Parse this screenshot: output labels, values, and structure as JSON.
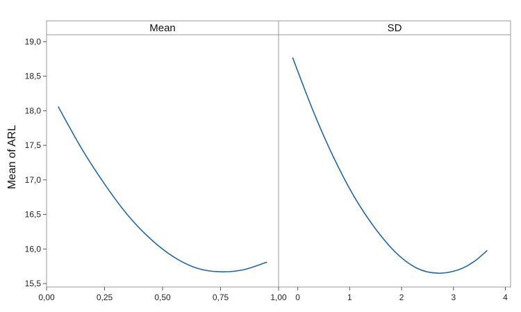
{
  "chart_data": {
    "type": "line",
    "ylabel": "Mean of ARL",
    "ylim": [
      15.45,
      19.1
    ],
    "yticks": [
      15.5,
      16.0,
      16.5,
      17.0,
      17.5,
      18.0,
      18.5,
      19.0
    ],
    "ytick_labels": [
      "15,5",
      "16,0",
      "16,5",
      "17,0",
      "17,5",
      "18,0",
      "18,5",
      "19,0"
    ],
    "line_color": "#2166AC",
    "panels": [
      {
        "title": "Mean",
        "xlim": [
          0.0,
          1.0
        ],
        "xticks": [
          0.0,
          0.25,
          0.5,
          0.75,
          1.0
        ],
        "xtick_labels": [
          "0,00",
          "0,25",
          "0,50",
          "0,75",
          "1,00"
        ],
        "x": [
          0.05,
          0.15,
          0.25,
          0.35,
          0.45,
          0.55,
          0.65,
          0.75,
          0.85,
          0.95
        ],
        "y": [
          18.06,
          17.46,
          16.94,
          16.49,
          16.14,
          15.88,
          15.72,
          15.67,
          15.7,
          15.81
        ]
      },
      {
        "title": "SD",
        "xlim": [
          -0.37,
          4.1
        ],
        "xticks": [
          0,
          1,
          2,
          3,
          4
        ],
        "xtick_labels": [
          "0",
          "1",
          "2",
          "3",
          "4"
        ],
        "x": [
          -0.1,
          0.3,
          0.7,
          1.1,
          1.5,
          1.9,
          2.3,
          2.7,
          3.1,
          3.4,
          3.65
        ],
        "y": [
          18.77,
          17.99,
          17.31,
          16.74,
          16.29,
          15.94,
          15.72,
          15.65,
          15.7,
          15.82,
          15.98
        ]
      }
    ]
  }
}
